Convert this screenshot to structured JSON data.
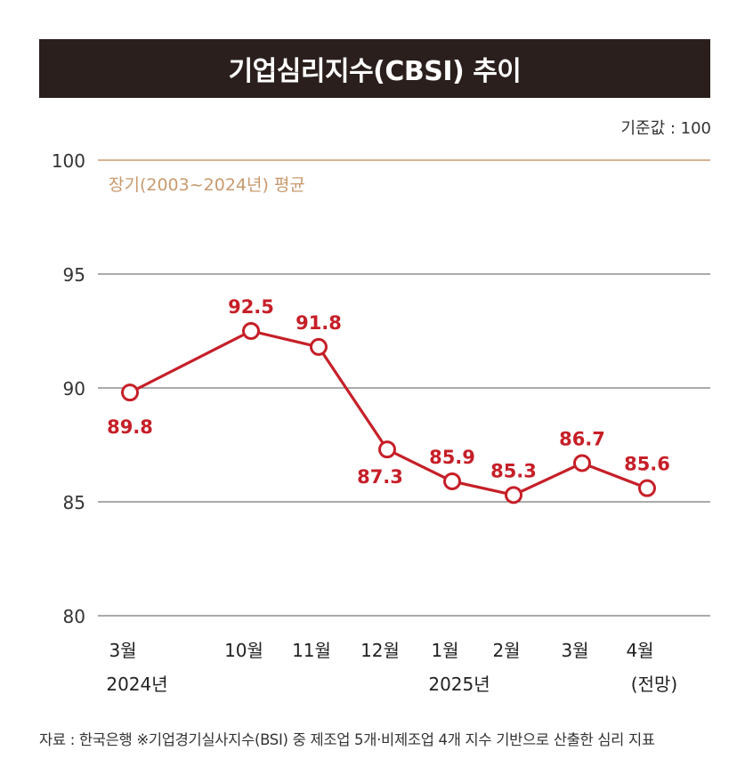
{
  "header": {
    "title": "기업심리지수(CBSI) 추이",
    "unit": "기준값 : 100"
  },
  "footer": {
    "source": "자료 : 한국은행 ※기업경기실사지수(BSI) 중 제조업 5개·비제조업 4개 지수 기반으로 산출한 심리 지표"
  },
  "colors": {
    "line": "#c61f28",
    "average": "#c99a6e",
    "title_bg": "#2a1f1c",
    "grid": "#555555"
  },
  "chart_data": {
    "type": "line",
    "categories": [
      "3월",
      "10월",
      "11월",
      "12월",
      "1월",
      "2월",
      "3월",
      "4월"
    ],
    "category_sublabels": [
      "2024년",
      "",
      "",
      "",
      "2025년",
      "",
      "",
      "(전망)"
    ],
    "series": [
      {
        "values": [
          89.8,
          92.5,
          91.8,
          87.3,
          85.9,
          85.3,
          86.7,
          85.6
        ]
      }
    ],
    "data_labels": [
      "89.8",
      "92.5",
      "91.8",
      "87.3",
      "85.9",
      "85.3",
      "86.7",
      "85.6"
    ],
    "ylim": [
      80,
      100
    ],
    "yticks": [
      80,
      85,
      90,
      95,
      100
    ],
    "reference_line": {
      "value": 100,
      "label": "장기(2003~2024년) 평균"
    },
    "grid": true
  }
}
